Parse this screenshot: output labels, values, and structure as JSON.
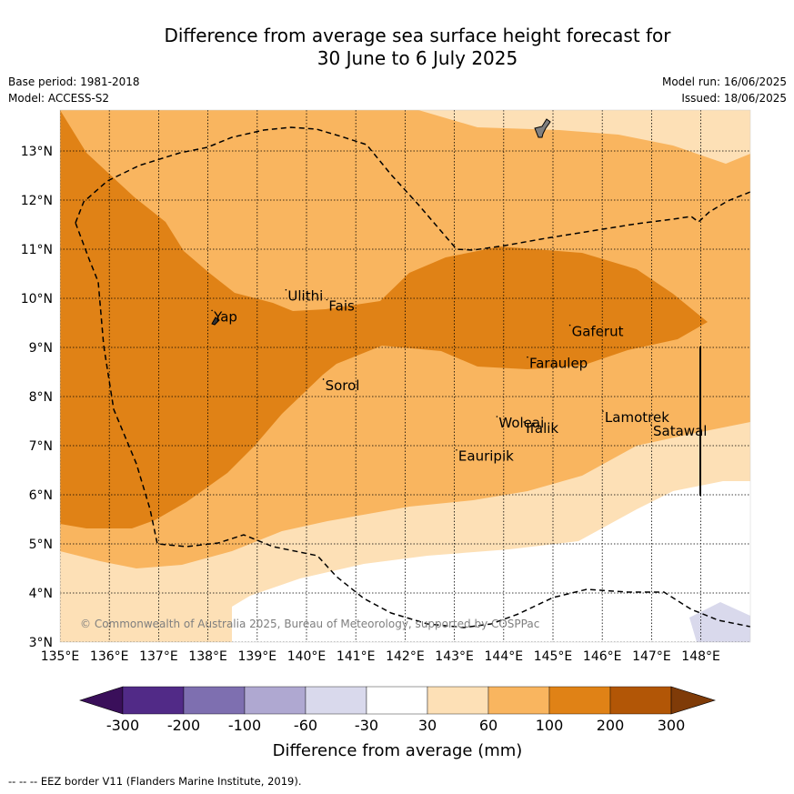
{
  "title": {
    "line1": "Difference from average sea surface height forecast for",
    "line2": "30 June to 6 July 2025"
  },
  "meta": {
    "base_period": "Base period: 1981-2018",
    "model": "Model: ACCESS-S2",
    "model_run": "Model run: 16/06/2025",
    "issued": "Issued: 18/06/2025"
  },
  "map": {
    "lon_ticks": [
      "135°E",
      "136°E",
      "137°E",
      "138°E",
      "139°E",
      "140°E",
      "141°E",
      "142°E",
      "143°E",
      "144°E",
      "145°E",
      "146°E",
      "147°E",
      "148°E"
    ],
    "lat_ticks": [
      "3°N",
      "4°N",
      "5°N",
      "6°N",
      "7°N",
      "8°N",
      "9°N",
      "10°N",
      "11°N",
      "12°N",
      "13°N"
    ],
    "places": [
      {
        "name": "Yap",
        "lon": 138.12,
        "lat": 9.53
      },
      {
        "name": "Ulithi",
        "lon": 139.62,
        "lat": 9.95
      },
      {
        "name": "Fais",
        "lon": 140.45,
        "lat": 9.75
      },
      {
        "name": "Sorol",
        "lon": 140.38,
        "lat": 8.13
      },
      {
        "name": "Gaferut",
        "lon": 145.38,
        "lat": 9.23
      },
      {
        "name": "Faraulep",
        "lon": 144.52,
        "lat": 8.58
      },
      {
        "name": "Woleai",
        "lon": 143.9,
        "lat": 7.37
      },
      {
        "name": "Ifalik",
        "lon": 144.45,
        "lat": 7.26
      },
      {
        "name": "Lamotrek",
        "lon": 146.05,
        "lat": 7.48
      },
      {
        "name": "Satawal",
        "lon": 147.03,
        "lat": 7.2
      },
      {
        "name": "Eauripik",
        "lon": 143.08,
        "lat": 6.69
      }
    ],
    "copyright": "© Commonwealth of Australia 2025, Bureau of Meteorology, supported by COSPPac"
  },
  "colorbar": {
    "ticks": [
      "-300",
      "-200",
      "-100",
      "-60",
      "-30",
      "30",
      "60",
      "100",
      "200",
      "300"
    ],
    "colors": [
      "#3a0f5a",
      "#512a87",
      "#7e6fb0",
      "#afa8d1",
      "#d9d9ec",
      "#ffffff",
      "#fde0b6",
      "#f9b55f",
      "#e08216",
      "#b25606",
      "#7f3b08"
    ],
    "label": "Difference from average (mm)"
  },
  "footnote": "--  --  -- EEZ border V11 (Flanders Marine Institute, 2019)."
}
